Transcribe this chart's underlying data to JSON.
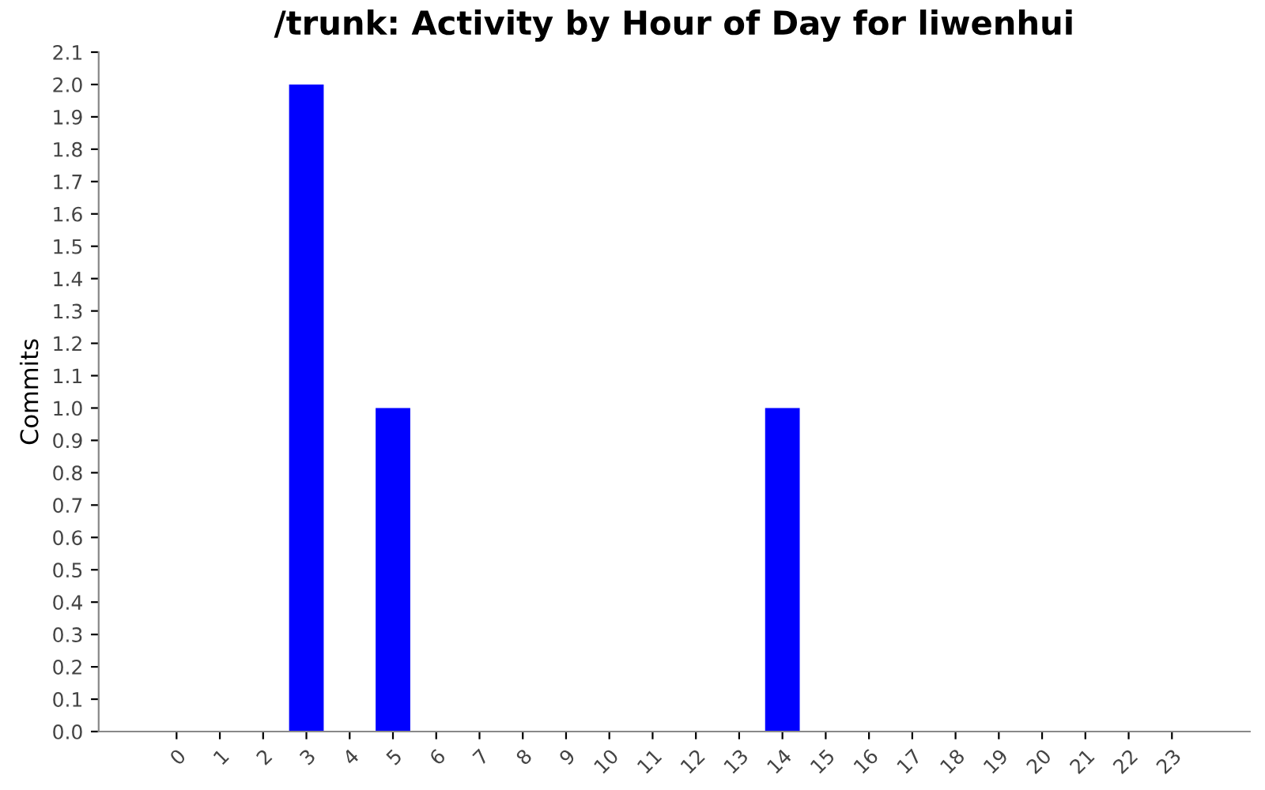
{
  "chart_data": {
    "type": "bar",
    "title": "/trunk: Activity by Hour of Day for liwenhui",
    "ylabel": "Commits",
    "categories": [
      "0",
      "1",
      "2",
      "3",
      "4",
      "5",
      "6",
      "7",
      "8",
      "9",
      "10",
      "11",
      "12",
      "13",
      "14",
      "15",
      "16",
      "17",
      "18",
      "19",
      "20",
      "21",
      "22",
      "23"
    ],
    "values": [
      0,
      0,
      0,
      2,
      0,
      1,
      0,
      0,
      0,
      0,
      0,
      0,
      0,
      0,
      1,
      0,
      0,
      0,
      0,
      0,
      0,
      0,
      0,
      0
    ],
    "color": "#0000ff",
    "ylim": [
      0,
      2.1
    ],
    "yticks": [
      {
        "value": 0,
        "label": "0.0"
      },
      0.1,
      0.2,
      0.3,
      0.4,
      0.5,
      0.6,
      0.7,
      0.8,
      0.9,
      {
        "value": 1,
        "label": "1.0"
      },
      1.1,
      1.2,
      1.3,
      1.4,
      1.5,
      1.6,
      1.7,
      1.8,
      1.9,
      {
        "value": 2,
        "label": "2.0"
      },
      2.1
    ],
    "grid": false,
    "legend": false
  }
}
